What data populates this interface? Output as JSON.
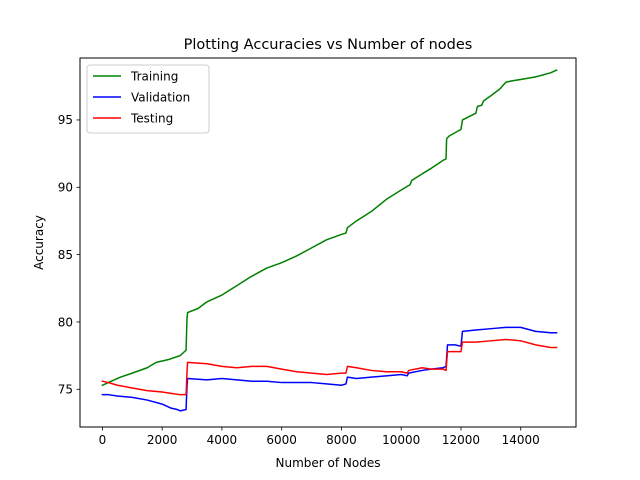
{
  "chart_data": {
    "type": "line",
    "title": "Plotting Accuracies vs Number of nodes",
    "xlabel": "Number of Nodes",
    "ylabel": "Accuracy",
    "xlim": [
      -750,
      15850
    ],
    "ylim": [
      72.2,
      99.6
    ],
    "xticks": [
      0,
      2000,
      4000,
      6000,
      8000,
      10000,
      12000,
      14000
    ],
    "yticks": [
      75,
      80,
      85,
      90,
      95
    ],
    "grid": false,
    "legend_position": "top-left",
    "series": [
      {
        "name": "Training",
        "color": "#008000",
        "x": [
          0,
          300,
          600,
          1000,
          1500,
          1800,
          2200,
          2600,
          2800,
          2830,
          2850,
          3200,
          3500,
          4000,
          4500,
          5000,
          5500,
          6000,
          6500,
          7000,
          7500,
          8000,
          8150,
          8200,
          8500,
          9000,
          9500,
          10000,
          10300,
          10350,
          10700,
          11000,
          11400,
          11500,
          11520,
          11600,
          12000,
          12050,
          12500,
          12550,
          12700,
          12750,
          13000,
          13300,
          13500,
          13700,
          14000,
          14500,
          15000,
          15200
        ],
        "y": [
          75.3,
          75.6,
          75.9,
          76.2,
          76.6,
          77.0,
          77.2,
          77.5,
          77.9,
          80.2,
          80.7,
          81.0,
          81.5,
          82.0,
          82.7,
          83.4,
          84.0,
          84.4,
          84.9,
          85.5,
          86.1,
          86.5,
          86.6,
          87.0,
          87.5,
          88.2,
          89.1,
          89.8,
          90.2,
          90.5,
          91.0,
          91.4,
          92.0,
          92.1,
          93.6,
          93.8,
          94.3,
          95.0,
          95.5,
          96.0,
          96.1,
          96.4,
          96.8,
          97.3,
          97.8,
          97.9,
          98.0,
          98.2,
          98.5,
          98.7
        ]
      },
      {
        "name": "Validation",
        "color": "#0000ff",
        "x": [
          0,
          200,
          500,
          1000,
          1500,
          2000,
          2300,
          2500,
          2600,
          2800,
          2830,
          2850,
          3500,
          4000,
          4500,
          5000,
          5500,
          6000,
          6500,
          7000,
          7500,
          8000,
          8150,
          8200,
          8500,
          9000,
          9500,
          10000,
          10200,
          10250,
          10700,
          11000,
          11400,
          11500,
          11550,
          11800,
          12000,
          12050,
          12500,
          13000,
          13500,
          14000,
          14500,
          15000,
          15200
        ],
        "y": [
          74.6,
          74.6,
          74.5,
          74.4,
          74.2,
          73.9,
          73.6,
          73.5,
          73.4,
          73.5,
          75.2,
          75.8,
          75.7,
          75.8,
          75.7,
          75.6,
          75.6,
          75.5,
          75.5,
          75.5,
          75.4,
          75.3,
          75.4,
          75.9,
          75.8,
          75.9,
          76.0,
          76.1,
          76.0,
          76.2,
          76.4,
          76.5,
          76.6,
          76.7,
          78.3,
          78.3,
          78.2,
          79.3,
          79.4,
          79.5,
          79.6,
          79.6,
          79.3,
          79.2,
          79.2
        ]
      },
      {
        "name": "Testing",
        "color": "#ff0000",
        "x": [
          0,
          200,
          500,
          1000,
          1500,
          2000,
          2300,
          2600,
          2800,
          2830,
          2850,
          3500,
          4000,
          4500,
          5000,
          5500,
          6000,
          6500,
          7000,
          7500,
          8000,
          8150,
          8200,
          8500,
          9000,
          9500,
          10000,
          10200,
          10250,
          10700,
          11000,
          11400,
          11500,
          11550,
          11800,
          12000,
          12050,
          12500,
          13000,
          13500,
          14000,
          14500,
          15000,
          15200
        ],
        "y": [
          75.6,
          75.5,
          75.3,
          75.1,
          74.9,
          74.8,
          74.7,
          74.6,
          74.6,
          76.2,
          77.0,
          76.9,
          76.7,
          76.6,
          76.7,
          76.7,
          76.5,
          76.3,
          76.2,
          76.1,
          76.2,
          76.2,
          76.7,
          76.6,
          76.4,
          76.3,
          76.3,
          76.2,
          76.4,
          76.6,
          76.5,
          76.5,
          76.4,
          77.8,
          77.8,
          77.8,
          78.5,
          78.5,
          78.6,
          78.7,
          78.6,
          78.3,
          78.1,
          78.1
        ]
      }
    ]
  }
}
